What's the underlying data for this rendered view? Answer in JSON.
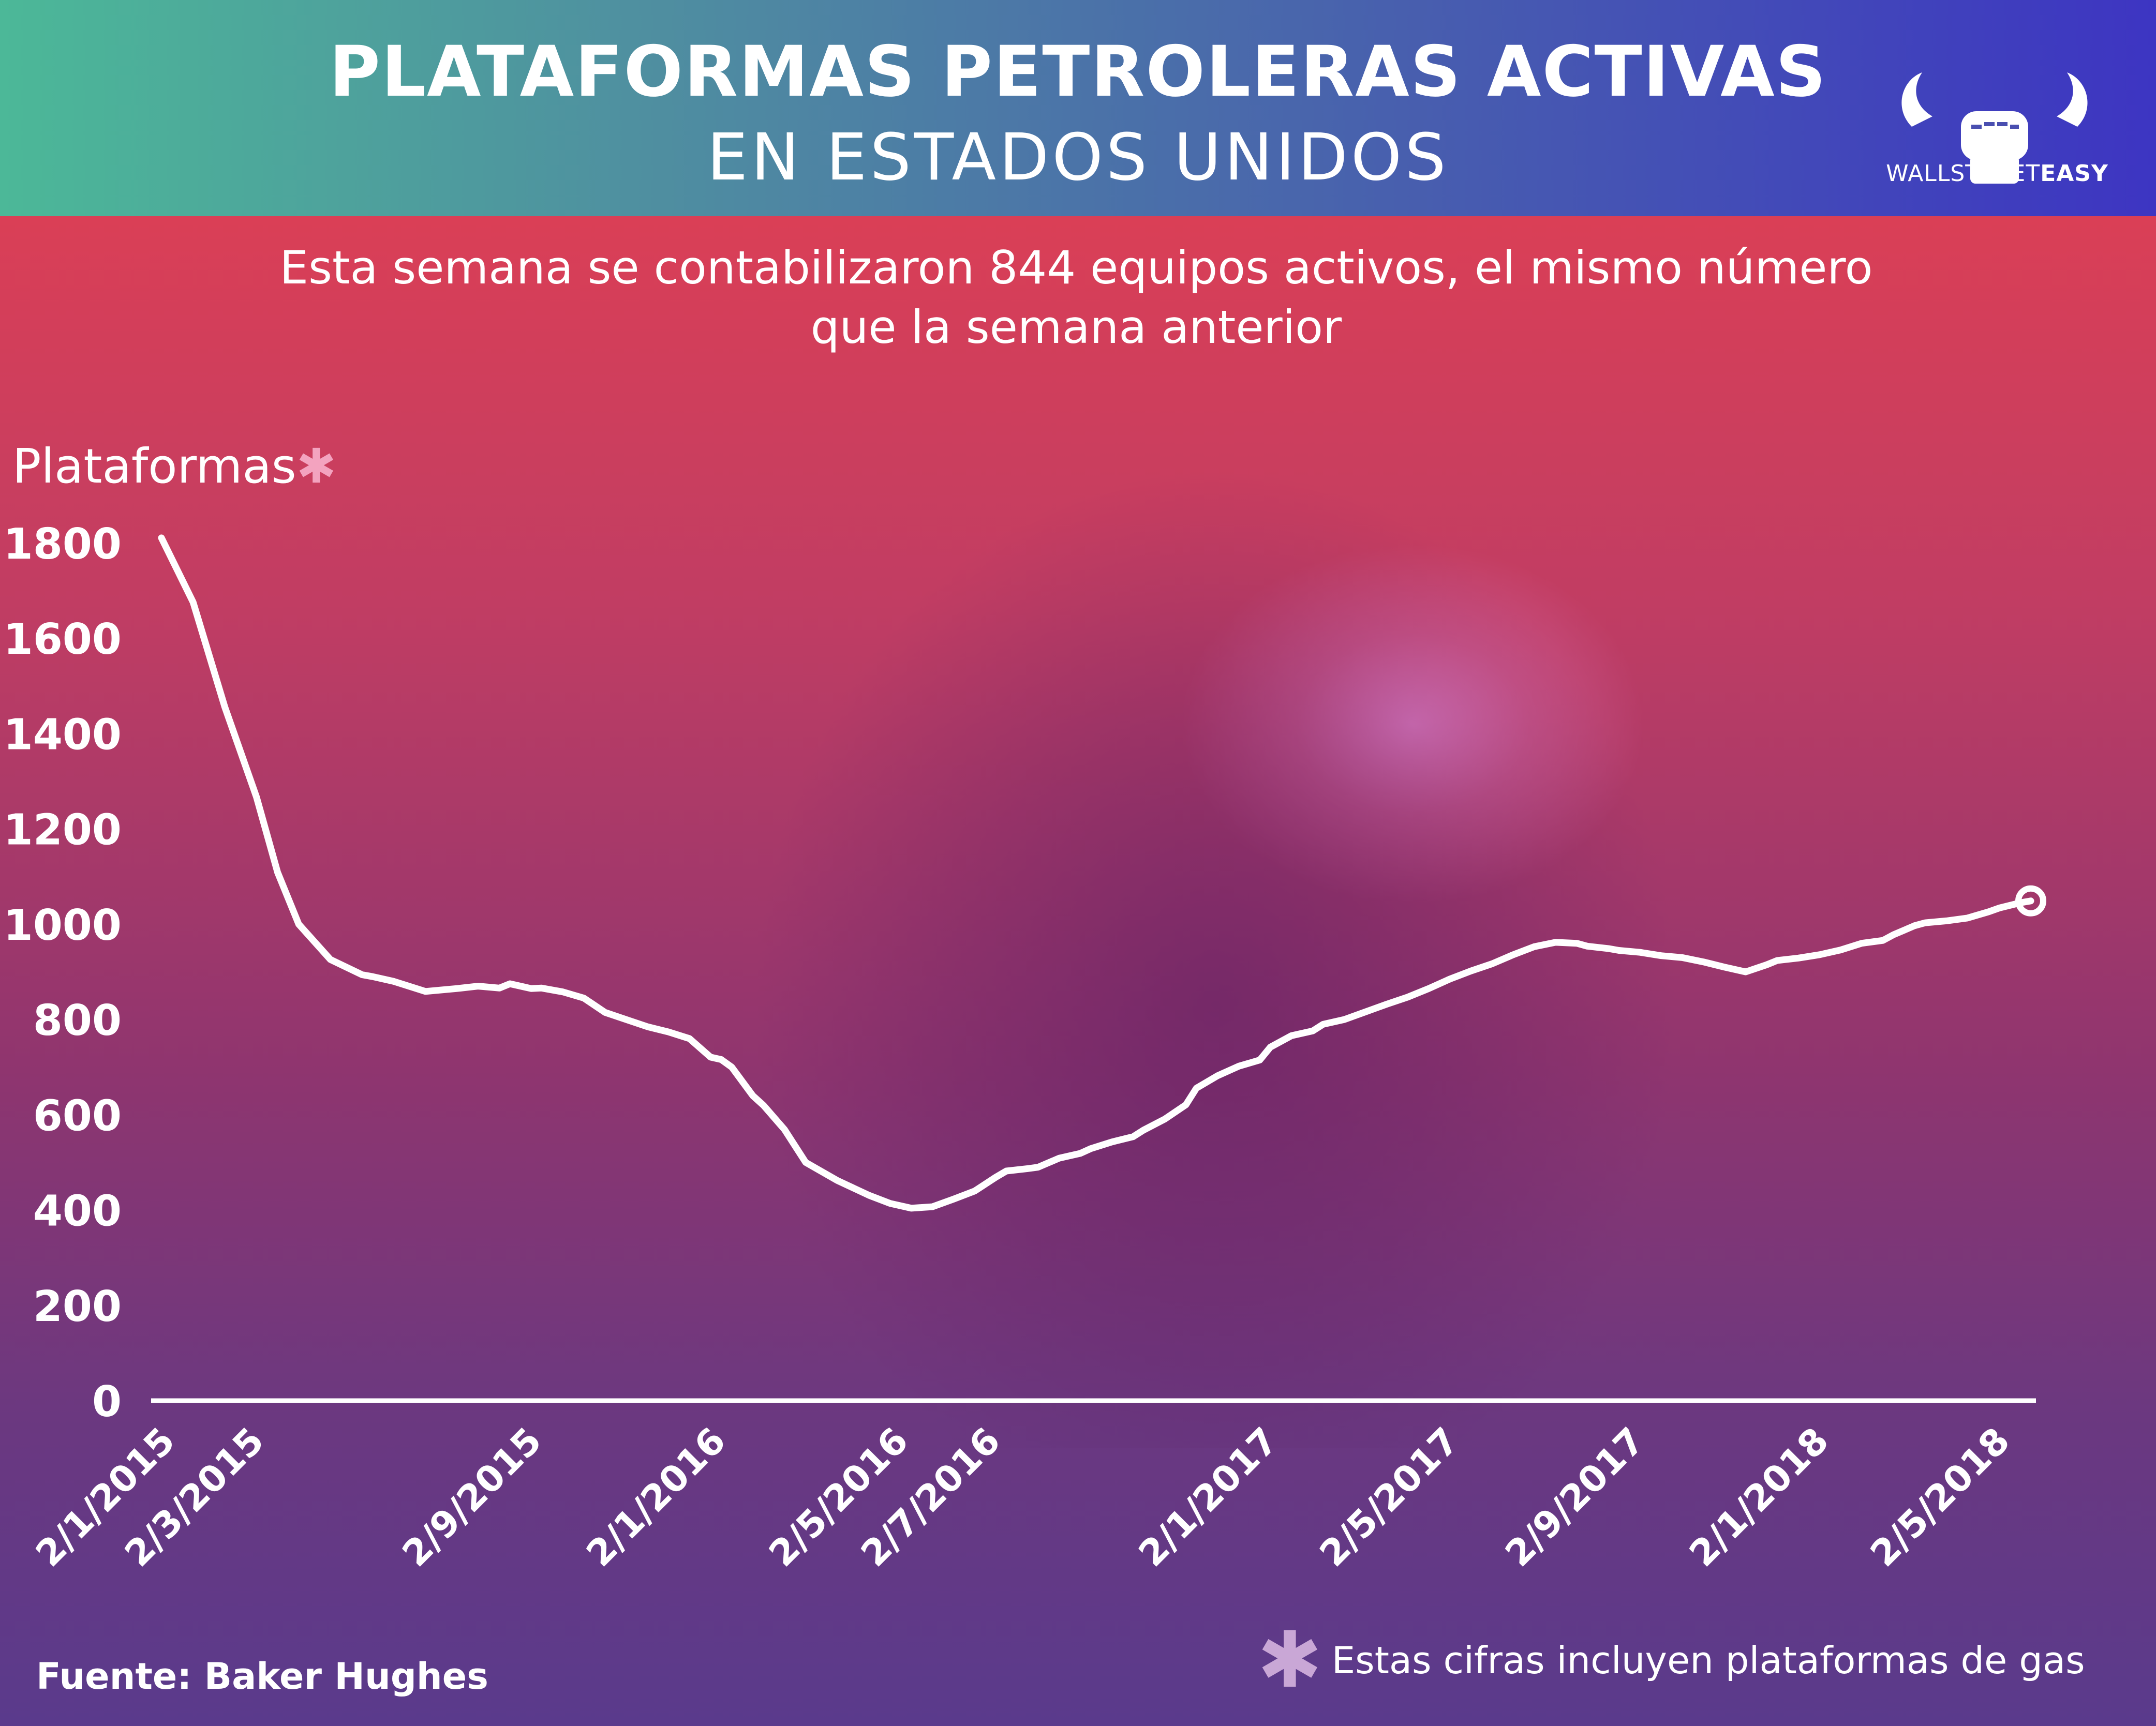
{
  "header": {
    "title": "PLATAFORMAS PETROLERAS ACTIVAS",
    "subtitle": "EN ESTADOS UNIDOS",
    "brand_light": "WALLSTREET",
    "brand_bold": "EASY"
  },
  "summary": {
    "line1": "Esta semana se contabilizaron 844 equipos activos, el mismo número",
    "line2": "que la semana anterior"
  },
  "footer": {
    "source": "Fuente: Baker Hughes",
    "note_mark": "✱",
    "note": "Estas cifras incluyen plataformas de gas"
  },
  "colors": {
    "header_left": "#4cb898",
    "header_right": "#3d35c2",
    "line": "#ffffff",
    "asterisk": "#f3a3bf"
  },
  "chart_data": {
    "type": "line",
    "ylabel": "Plataformas",
    "ylabel_mark": "✱",
    "ylim": [
      0,
      1800
    ],
    "yticks": [
      0,
      200,
      400,
      600,
      800,
      1000,
      1200,
      1400,
      1600,
      1800
    ],
    "xlim": [
      "2015-01-02",
      "2018-05-25"
    ],
    "xtick_labels": [
      {
        "date": "2015-01-02",
        "label": "2/1/2015"
      },
      {
        "date": "2015-03-02",
        "label": "2/3/2015"
      },
      {
        "date": "2015-09-02",
        "label": "2/9/2015"
      },
      {
        "date": "2016-01-02",
        "label": "2/1/2016"
      },
      {
        "date": "2016-05-02",
        "label": "2/5/2016"
      },
      {
        "date": "2016-07-02",
        "label": "2/7/2016"
      },
      {
        "date": "2017-01-02",
        "label": "2/1/2017"
      },
      {
        "date": "2017-05-02",
        "label": "2/5/2017"
      },
      {
        "date": "2017-09-02",
        "label": "2/9/2017"
      },
      {
        "date": "2018-01-02",
        "label": "2/1/2018"
      },
      {
        "date": "2018-05-02",
        "label": "2/5/2018"
      }
    ],
    "grid": false,
    "legend": "none",
    "series": [
      {
        "x": [
          "2015-01-02",
          "2015-01-23",
          "2015-02-13",
          "2015-03-06",
          "2015-03-20",
          "2015-04-03",
          "2015-04-24",
          "2015-05-15",
          "2015-05-22",
          "2015-06-05",
          "2015-06-26",
          "2015-07-17",
          "2015-07-31",
          "2015-08-14",
          "2015-08-21",
          "2015-09-04",
          "2015-09-11",
          "2015-09-25",
          "2015-10-09",
          "2015-10-23",
          "2015-11-06",
          "2015-11-20",
          "2015-12-04",
          "2015-12-18",
          "2016-01-01",
          "2016-01-08",
          "2016-01-15",
          "2016-01-22",
          "2016-01-29",
          "2016-02-05",
          "2016-02-19",
          "2016-03-04",
          "2016-03-25",
          "2016-04-15",
          "2016-04-29",
          "2016-05-13",
          "2016-05-27",
          "2016-06-10",
          "2016-06-24",
          "2016-07-08",
          "2016-07-15",
          "2016-07-29",
          "2016-08-05",
          "2016-08-19",
          "2016-09-02",
          "2016-09-09",
          "2016-09-23",
          "2016-10-07",
          "2016-10-14",
          "2016-10-28",
          "2016-11-11",
          "2016-11-18",
          "2016-12-02",
          "2016-12-16",
          "2016-12-30",
          "2017-01-06",
          "2017-01-20",
          "2017-02-03",
          "2017-02-10",
          "2017-02-24",
          "2017-03-10",
          "2017-03-24",
          "2017-04-07",
          "2017-04-21",
          "2017-05-05",
          "2017-05-19",
          "2017-06-02",
          "2017-06-16",
          "2017-06-30",
          "2017-07-14",
          "2017-07-28",
          "2017-08-04",
          "2017-08-18",
          "2017-08-25",
          "2017-09-08",
          "2017-09-22",
          "2017-10-06",
          "2017-10-20",
          "2017-11-03",
          "2017-11-17",
          "2017-12-01",
          "2017-12-08",
          "2017-12-22",
          "2018-01-05",
          "2018-01-19",
          "2018-02-02",
          "2018-02-16",
          "2018-02-23",
          "2018-03-09",
          "2018-03-16",
          "2018-03-30",
          "2018-04-13",
          "2018-04-27",
          "2018-05-04",
          "2018-05-18",
          "2018-05-25"
        ],
        "y": [
          1811,
          1676,
          1456,
          1267,
          1109,
          1000,
          926,
          894,
          890,
          880,
          859,
          865,
          870,
          866,
          875,
          865,
          866,
          858,
          845,
          815,
          800,
          785,
          774,
          760,
          721,
          716,
          700,
          670,
          640,
          620,
          569,
          500,
          462,
          431,
          414,
          404,
          407,
          423,
          440,
          469,
          482,
          487,
          490,
          509,
          519,
          529,
          543,
          554,
          568,
          591,
          621,
          656,
          682,
          702,
          715,
          742,
          766,
          776,
          790,
          800,
          816,
          832,
          847,
          865,
          885,
          902,
          917,
          936,
          953,
          962,
          960,
          954,
          949,
          945,
          941,
          934,
          930,
          921,
          910,
          900,
          915,
          924,
          929,
          936,
          946,
          960,
          966,
          978,
          997,
          1003,
          1007,
          1013,
          1026,
          1034,
          1045,
          1049
        ]
      }
    ]
  }
}
